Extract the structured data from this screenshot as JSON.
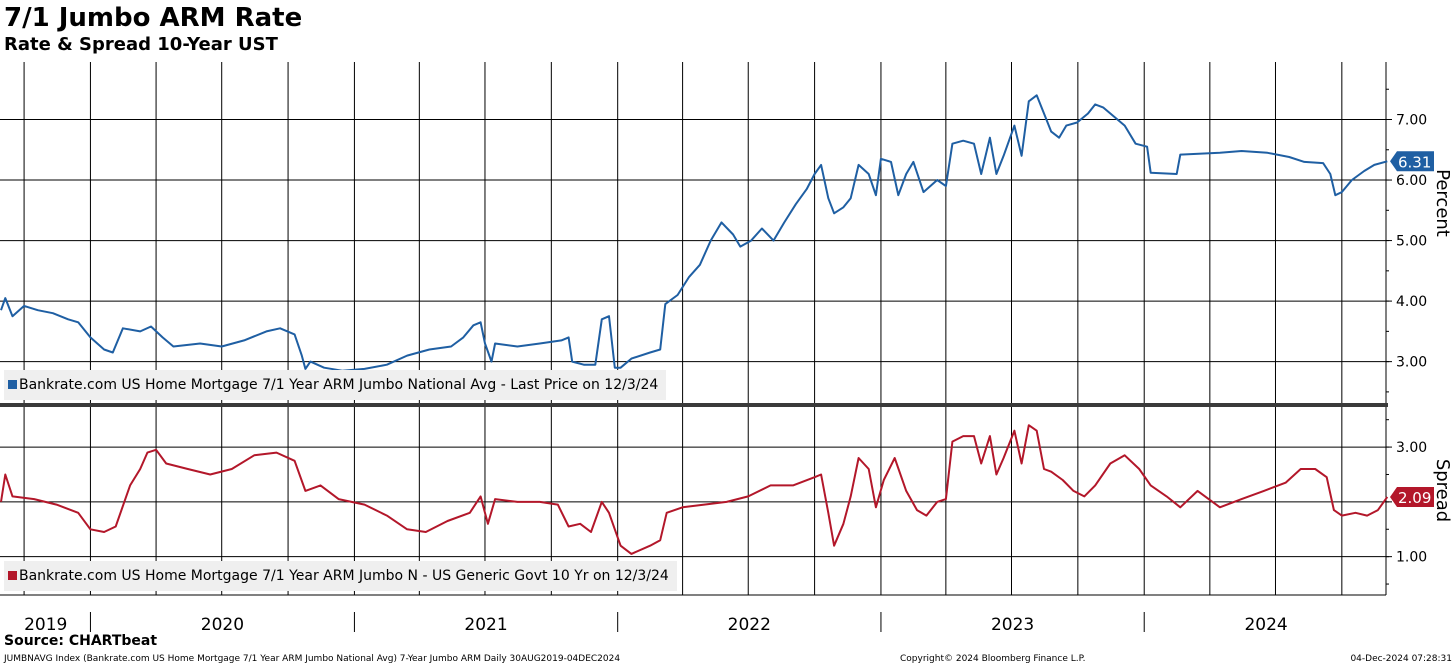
{
  "header": {
    "title": "7/1 Jumbo ARM Rate",
    "subtitle": "Rate & Spread 10-Year UST"
  },
  "footer": {
    "source": "Source: CHARTbeat",
    "index_desc": "JUMBNAVG Index (Bankrate.com US Home Mortgage 7/1 Year ARM Jumbo National Avg) 7-Year Jumbo ARM  Daily 30AUG2019-04DEC2024",
    "copyright": "Copyright© 2024 Bloomberg Finance L.P.",
    "timestamp": "04-Dec-2024 07:28:31"
  },
  "colors": {
    "rate": "#1f5fa3",
    "spread": "#b3172a",
    "grid": "#000000",
    "legend_bg": "#efefef"
  },
  "chart_data": [
    {
      "type": "line",
      "ylabel": "Percent",
      "ylim": [
        2.3,
        7.95
      ],
      "yticks": [
        "3.00",
        "4.00",
        "5.00",
        "6.00",
        "7.00"
      ],
      "last_value_label": "6.31",
      "legend": "Bankrate.com US Home Mortgage 7/1 Year ARM Jumbo National Avg - Last Price on 12/3/24",
      "x_labels": [
        "2019",
        "2020",
        "2021",
        "2022",
        "2023",
        "2024"
      ],
      "series": [
        {
          "name": "Bankrate.com US Home Mortgage 7/1 Year ARM Jumbo National Avg",
          "points": [
            [
              "2019-08-30",
              3.85
            ],
            [
              "2019-09-05",
              4.05
            ],
            [
              "2019-09-15",
              3.75
            ],
            [
              "2019-10-01",
              3.92
            ],
            [
              "2019-10-20",
              3.85
            ],
            [
              "2019-11-10",
              3.8
            ],
            [
              "2019-12-01",
              3.7
            ],
            [
              "2019-12-15",
              3.65
            ],
            [
              "2020-01-01",
              3.4
            ],
            [
              "2020-01-20",
              3.2
            ],
            [
              "2020-02-01",
              3.15
            ],
            [
              "2020-02-15",
              3.55
            ],
            [
              "2020-03-10",
              3.5
            ],
            [
              "2020-03-25",
              3.58
            ],
            [
              "2020-04-10",
              3.4
            ],
            [
              "2020-04-25",
              3.25
            ],
            [
              "2020-06-01",
              3.3
            ],
            [
              "2020-07-01",
              3.25
            ],
            [
              "2020-08-01",
              3.35
            ],
            [
              "2020-09-01",
              3.5
            ],
            [
              "2020-09-20",
              3.55
            ],
            [
              "2020-10-10",
              3.45
            ],
            [
              "2020-10-20",
              3.1
            ],
            [
              "2020-10-25",
              2.88
            ],
            [
              "2020-11-01",
              3.0
            ],
            [
              "2020-11-20",
              2.9
            ],
            [
              "2020-12-15",
              2.85
            ],
            [
              "2021-01-15",
              2.88
            ],
            [
              "2021-02-15",
              2.95
            ],
            [
              "2021-03-15",
              3.1
            ],
            [
              "2021-04-15",
              3.2
            ],
            [
              "2021-05-15",
              3.25
            ],
            [
              "2021-06-01",
              3.4
            ],
            [
              "2021-06-15",
              3.6
            ],
            [
              "2021-06-25",
              3.65
            ],
            [
              "2021-07-01",
              3.3
            ],
            [
              "2021-07-10",
              3.0
            ],
            [
              "2021-07-15",
              3.3
            ],
            [
              "2021-08-15",
              3.25
            ],
            [
              "2021-09-15",
              3.3
            ],
            [
              "2021-10-15",
              3.35
            ],
            [
              "2021-10-25",
              3.4
            ],
            [
              "2021-10-30",
              3.0
            ],
            [
              "2021-11-15",
              2.95
            ],
            [
              "2021-12-01",
              2.95
            ],
            [
              "2021-12-10",
              3.7
            ],
            [
              "2021-12-20",
              3.75
            ],
            [
              "2021-12-28",
              2.9
            ],
            [
              "2022-01-05",
              2.9
            ],
            [
              "2022-01-20",
              3.05
            ],
            [
              "2022-02-15",
              3.15
            ],
            [
              "2022-03-01",
              3.2
            ],
            [
              "2022-03-08",
              3.95
            ],
            [
              "2022-03-25",
              4.1
            ],
            [
              "2022-04-10",
              4.4
            ],
            [
              "2022-04-25",
              4.6
            ],
            [
              "2022-05-10",
              5.0
            ],
            [
              "2022-05-25",
              5.3
            ],
            [
              "2022-06-10",
              5.1
            ],
            [
              "2022-06-20",
              4.9
            ],
            [
              "2022-07-05",
              5.0
            ],
            [
              "2022-07-20",
              5.2
            ],
            [
              "2022-08-05",
              5.0
            ],
            [
              "2022-08-20",
              5.3
            ],
            [
              "2022-09-05",
              5.6
            ],
            [
              "2022-09-20",
              5.85
            ],
            [
              "2022-10-01",
              6.1
            ],
            [
              "2022-10-10",
              6.25
            ],
            [
              "2022-10-20",
              5.7
            ],
            [
              "2022-10-28",
              5.45
            ],
            [
              "2022-11-10",
              5.55
            ],
            [
              "2022-11-20",
              5.7
            ],
            [
              "2022-12-01",
              6.25
            ],
            [
              "2022-12-15",
              6.1
            ],
            [
              "2022-12-25",
              5.75
            ],
            [
              "2023-01-01",
              6.35
            ],
            [
              "2023-01-15",
              6.3
            ],
            [
              "2023-01-25",
              5.75
            ],
            [
              "2023-02-05",
              6.1
            ],
            [
              "2023-02-15",
              6.3
            ],
            [
              "2023-03-01",
              5.8
            ],
            [
              "2023-03-20",
              6.0
            ],
            [
              "2023-04-01",
              5.9
            ],
            [
              "2023-04-10",
              6.6
            ],
            [
              "2023-04-25",
              6.65
            ],
            [
              "2023-05-10",
              6.6
            ],
            [
              "2023-05-20",
              6.1
            ],
            [
              "2023-06-01",
              6.7
            ],
            [
              "2023-06-10",
              6.1
            ],
            [
              "2023-06-20",
              6.4
            ],
            [
              "2023-07-05",
              6.9
            ],
            [
              "2023-07-15",
              6.4
            ],
            [
              "2023-07-25",
              7.3
            ],
            [
              "2023-08-05",
              7.4
            ],
            [
              "2023-08-15",
              7.1
            ],
            [
              "2023-08-25",
              6.8
            ],
            [
              "2023-09-05",
              6.7
            ],
            [
              "2023-09-15",
              6.9
            ],
            [
              "2023-09-30",
              6.95
            ],
            [
              "2023-10-15",
              7.1
            ],
            [
              "2023-10-25",
              7.25
            ],
            [
              "2023-11-05",
              7.2
            ],
            [
              "2023-11-20",
              7.05
            ],
            [
              "2023-12-05",
              6.9
            ],
            [
              "2023-12-20",
              6.6
            ],
            [
              "2024-01-05",
              6.55
            ],
            [
              "2024-01-10",
              6.12
            ],
            [
              "2024-02-15",
              6.1
            ],
            [
              "2024-02-20",
              6.42
            ],
            [
              "2024-04-15",
              6.45
            ],
            [
              "2024-05-15",
              6.48
            ],
            [
              "2024-06-20",
              6.45
            ],
            [
              "2024-07-20",
              6.38
            ],
            [
              "2024-08-10",
              6.3
            ],
            [
              "2024-09-05",
              6.28
            ],
            [
              "2024-09-15",
              6.1
            ],
            [
              "2024-09-22",
              5.75
            ],
            [
              "2024-10-01",
              5.8
            ],
            [
              "2024-10-15",
              6.0
            ],
            [
              "2024-11-01",
              6.15
            ],
            [
              "2024-11-15",
              6.25
            ],
            [
              "2024-12-03",
              6.31
            ]
          ]
        }
      ]
    },
    {
      "type": "line",
      "ylabel": "Spread",
      "ylim": [
        0.3,
        3.75
      ],
      "yticks": [
        "1.00",
        "2.00",
        "3.00"
      ],
      "last_value_label": "2.09",
      "legend": "Bankrate.com US Home Mortgage 7/1 Year ARM Jumbo N - US Generic Govt 10 Yr on 12/3/24",
      "series": [
        {
          "name": "Bankrate.com US Home Mortgage 7/1 Year ARM Jumbo N - US Generic Govt 10 Yr",
          "points": [
            [
              "2019-08-30",
              2.0
            ],
            [
              "2019-09-05",
              2.5
            ],
            [
              "2019-09-15",
              2.1
            ],
            [
              "2019-10-15",
              2.05
            ],
            [
              "2019-11-15",
              1.95
            ],
            [
              "2019-12-15",
              1.8
            ],
            [
              "2020-01-01",
              1.5
            ],
            [
              "2020-01-20",
              1.45
            ],
            [
              "2020-02-05",
              1.55
            ],
            [
              "2020-02-25",
              2.3
            ],
            [
              "2020-03-10",
              2.6
            ],
            [
              "2020-03-20",
              2.9
            ],
            [
              "2020-04-01",
              2.95
            ],
            [
              "2020-04-15",
              2.7
            ],
            [
              "2020-05-15",
              2.6
            ],
            [
              "2020-06-15",
              2.5
            ],
            [
              "2020-07-15",
              2.6
            ],
            [
              "2020-08-15",
              2.85
            ],
            [
              "2020-09-15",
              2.9
            ],
            [
              "2020-10-10",
              2.75
            ],
            [
              "2020-10-25",
              2.2
            ],
            [
              "2020-11-15",
              2.3
            ],
            [
              "2020-12-10",
              2.05
            ],
            [
              "2021-01-15",
              1.95
            ],
            [
              "2021-02-15",
              1.75
            ],
            [
              "2021-03-15",
              1.5
            ],
            [
              "2021-04-10",
              1.45
            ],
            [
              "2021-05-10",
              1.65
            ],
            [
              "2021-06-10",
              1.8
            ],
            [
              "2021-06-25",
              2.1
            ],
            [
              "2021-07-05",
              1.6
            ],
            [
              "2021-07-15",
              2.05
            ],
            [
              "2021-08-15",
              2.0
            ],
            [
              "2021-09-15",
              2.0
            ],
            [
              "2021-10-10",
              1.95
            ],
            [
              "2021-10-25",
              1.55
            ],
            [
              "2021-11-10",
              1.6
            ],
            [
              "2021-11-25",
              1.45
            ],
            [
              "2021-12-10",
              2.0
            ],
            [
              "2021-12-20",
              1.8
            ],
            [
              "2021-12-28",
              1.5
            ],
            [
              "2022-01-05",
              1.2
            ],
            [
              "2022-01-20",
              1.05
            ],
            [
              "2022-02-15",
              1.2
            ],
            [
              "2022-03-01",
              1.3
            ],
            [
              "2022-03-10",
              1.8
            ],
            [
              "2022-04-01",
              1.9
            ],
            [
              "2022-05-01",
              1.95
            ],
            [
              "2022-06-01",
              2.0
            ],
            [
              "2022-07-01",
              2.1
            ],
            [
              "2022-08-01",
              2.3
            ],
            [
              "2022-09-01",
              2.3
            ],
            [
              "2022-10-01",
              2.45
            ],
            [
              "2022-10-10",
              2.5
            ],
            [
              "2022-10-20",
              1.8
            ],
            [
              "2022-10-28",
              1.2
            ],
            [
              "2022-11-10",
              1.6
            ],
            [
              "2022-11-20",
              2.1
            ],
            [
              "2022-12-01",
              2.8
            ],
            [
              "2022-12-15",
              2.6
            ],
            [
              "2022-12-25",
              1.9
            ],
            [
              "2023-01-05",
              2.4
            ],
            [
              "2023-01-20",
              2.8
            ],
            [
              "2023-02-05",
              2.2
            ],
            [
              "2023-02-20",
              1.85
            ],
            [
              "2023-03-05",
              1.75
            ],
            [
              "2023-03-20",
              2.0
            ],
            [
              "2023-04-01",
              2.05
            ],
            [
              "2023-04-10",
              3.1
            ],
            [
              "2023-04-25",
              3.2
            ],
            [
              "2023-05-10",
              3.2
            ],
            [
              "2023-05-20",
              2.7
            ],
            [
              "2023-06-01",
              3.2
            ],
            [
              "2023-06-10",
              2.5
            ],
            [
              "2023-06-20",
              2.8
            ],
            [
              "2023-07-05",
              3.3
            ],
            [
              "2023-07-15",
              2.7
            ],
            [
              "2023-07-25",
              3.4
            ],
            [
              "2023-08-05",
              3.3
            ],
            [
              "2023-08-15",
              2.6
            ],
            [
              "2023-08-25",
              2.55
            ],
            [
              "2023-09-10",
              2.4
            ],
            [
              "2023-09-25",
              2.2
            ],
            [
              "2023-10-10",
              2.1
            ],
            [
              "2023-10-25",
              2.3
            ],
            [
              "2023-11-15",
              2.7
            ],
            [
              "2023-12-05",
              2.85
            ],
            [
              "2023-12-25",
              2.6
            ],
            [
              "2024-01-10",
              2.3
            ],
            [
              "2024-02-01",
              2.1
            ],
            [
              "2024-02-20",
              1.9
            ],
            [
              "2024-03-15",
              2.2
            ],
            [
              "2024-04-15",
              1.9
            ],
            [
              "2024-05-15",
              2.05
            ],
            [
              "2024-06-15",
              2.2
            ],
            [
              "2024-07-15",
              2.35
            ],
            [
              "2024-08-05",
              2.6
            ],
            [
              "2024-08-25",
              2.6
            ],
            [
              "2024-09-10",
              2.45
            ],
            [
              "2024-09-20",
              1.85
            ],
            [
              "2024-10-01",
              1.75
            ],
            [
              "2024-10-20",
              1.8
            ],
            [
              "2024-11-05",
              1.75
            ],
            [
              "2024-11-20",
              1.85
            ],
            [
              "2024-12-03",
              2.09
            ]
          ]
        }
      ]
    }
  ]
}
